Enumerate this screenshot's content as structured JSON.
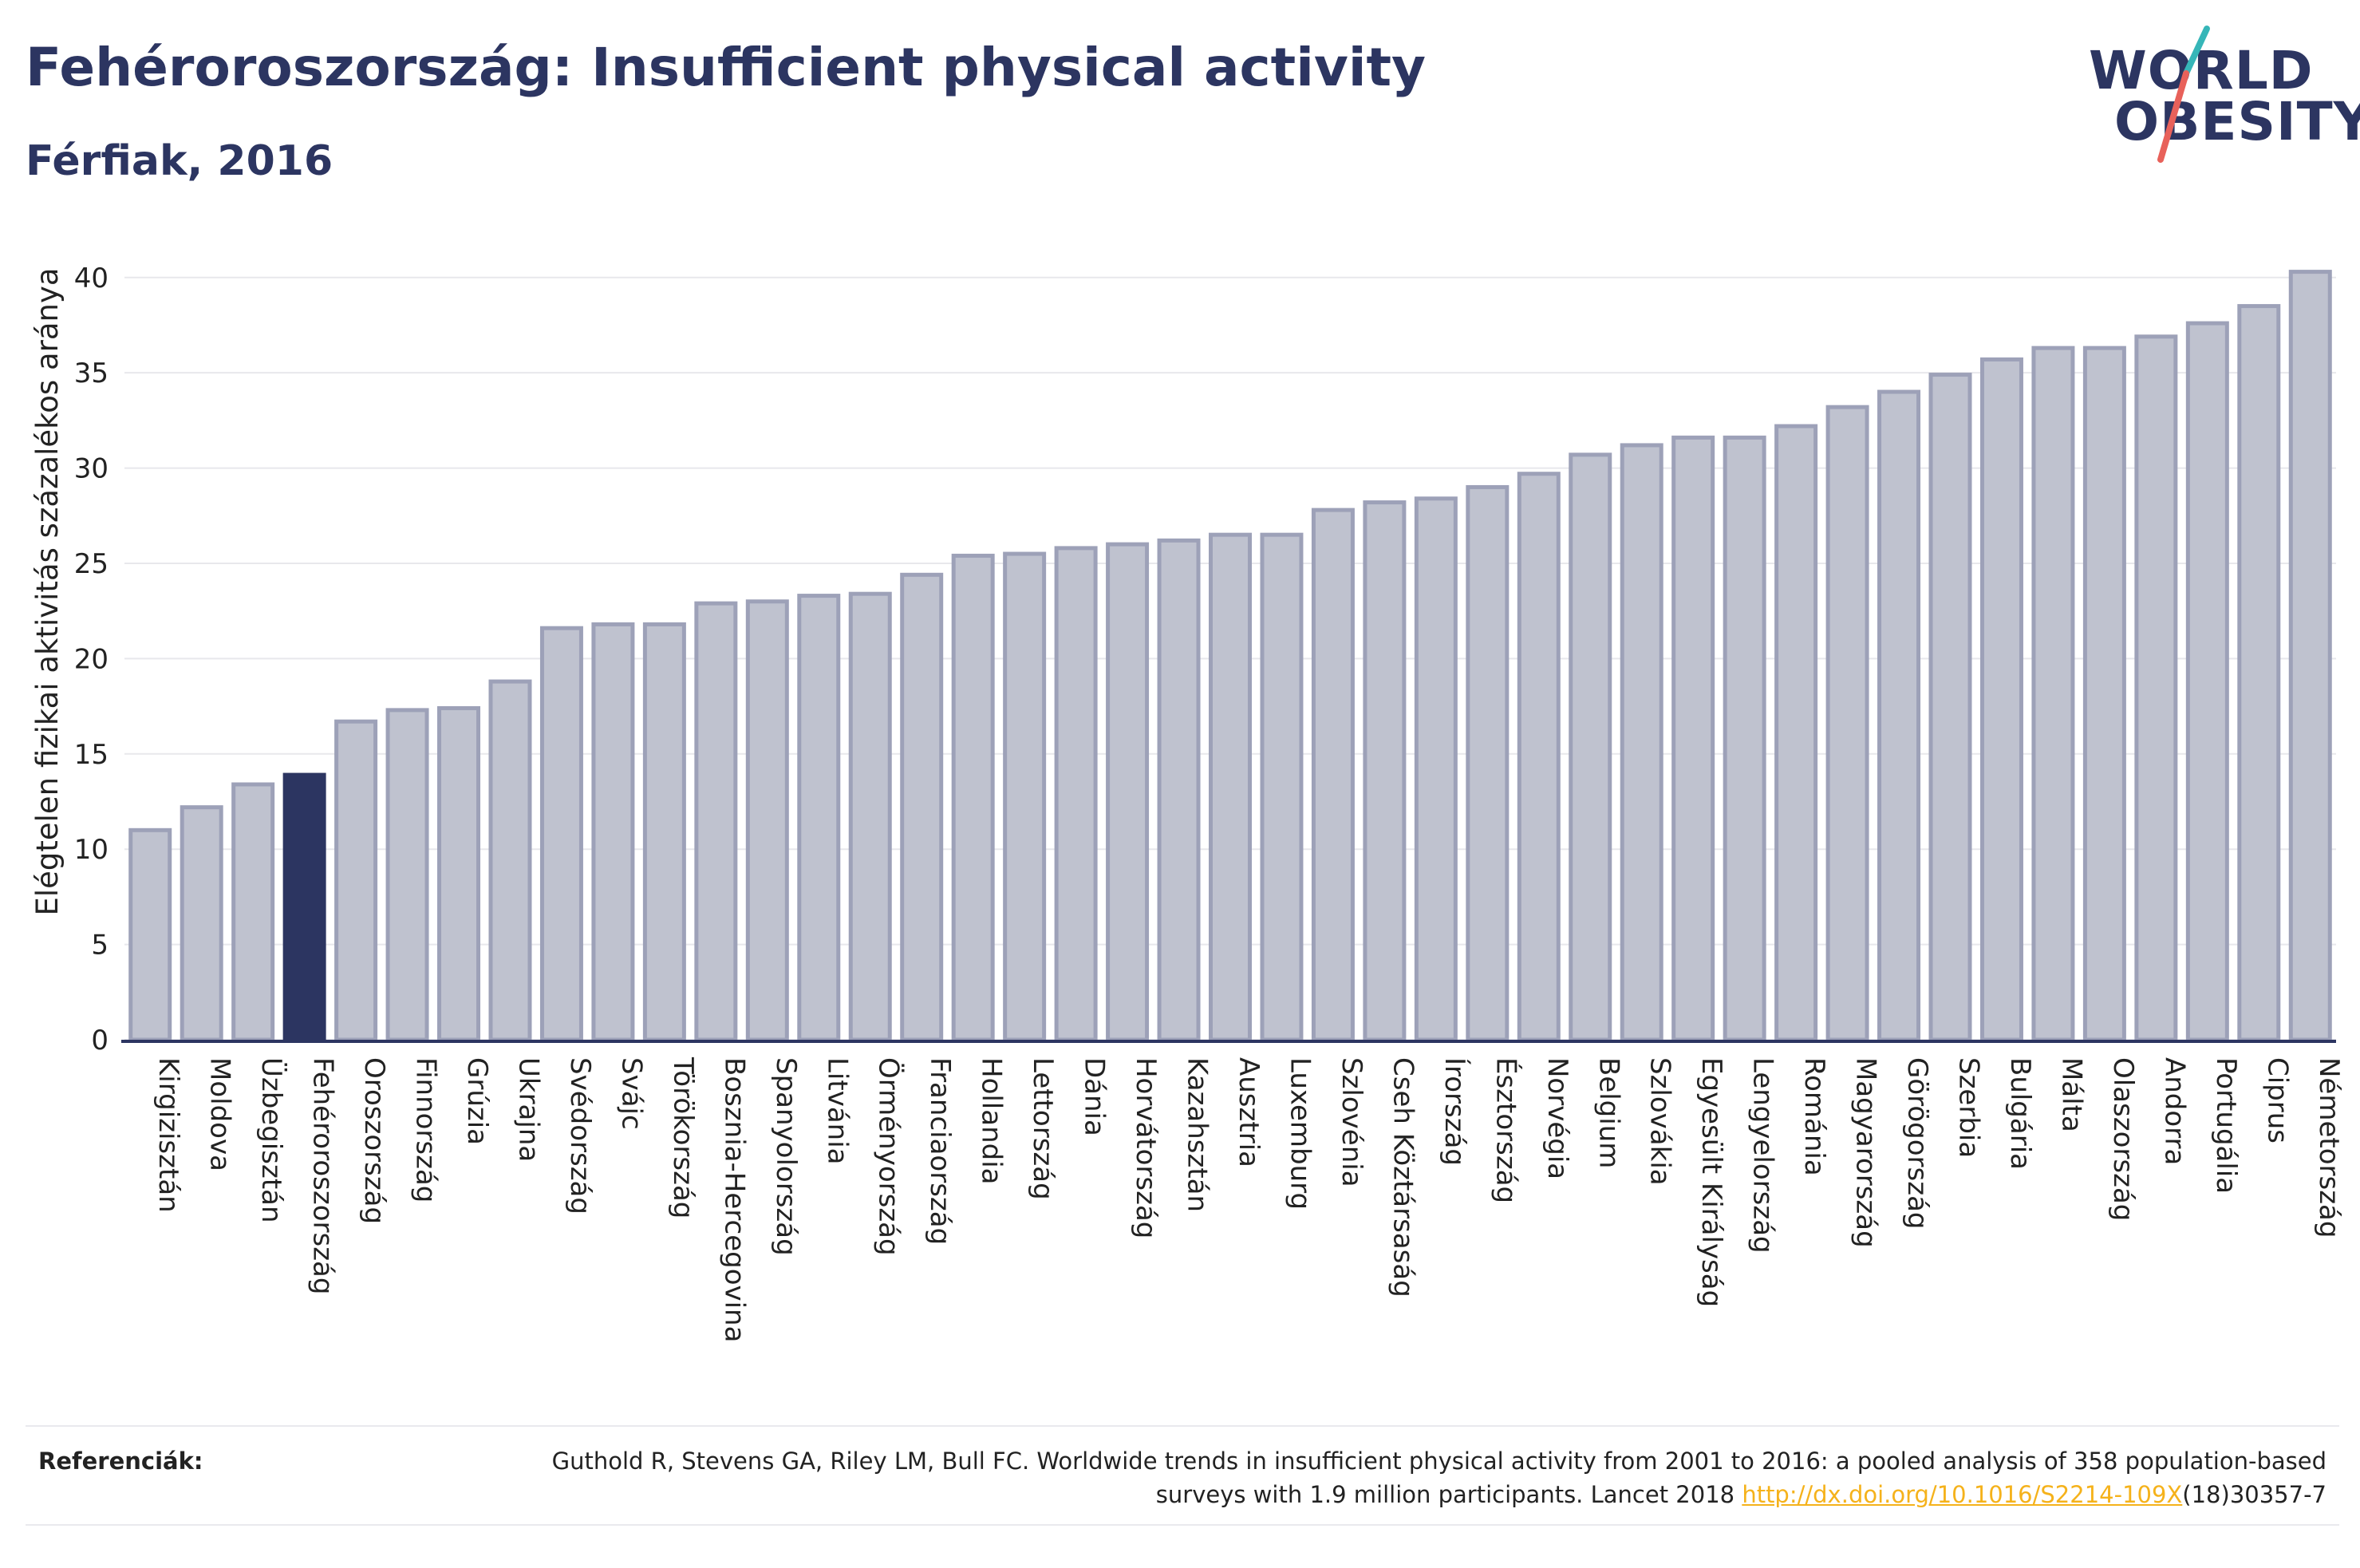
{
  "header": {
    "title": "Fehéroroszország: Insufficient physical activity",
    "subtitle": "Férfiak, 2016"
  },
  "logo": {
    "line1": "WORLD",
    "line2": "OBESITY",
    "slash_colors": [
      "#36b6b8",
      "#e8615a"
    ]
  },
  "colors": {
    "highlight": "#2c3561",
    "bar_fill": "#bfc2cf",
    "bar_stroke": "#9da1b8",
    "grid": "#e8e8ec",
    "axis": "#2c3561",
    "link": "#f5b21b"
  },
  "chart_data": {
    "type": "bar",
    "title": "Fehéroroszország: Insufficient physical activity",
    "subtitle": "Férfiak, 2016",
    "xlabel": "",
    "ylabel": "Elégtelen fizikai aktivitás százalékos aránya",
    "ylim": [
      0,
      42
    ],
    "yticks": [
      0,
      5,
      10,
      15,
      20,
      25,
      30,
      35,
      40
    ],
    "grid": true,
    "legend": "none",
    "highlight_category": "Fehéroroszország",
    "categories": [
      "Kirgizisztán",
      "Moldova",
      "Üzbegisztán",
      "Fehéroroszország",
      "Oroszország",
      "Finnország",
      "Grúzia",
      "Ukrajna",
      "Svédország",
      "Svájc",
      "Törökország",
      "Bosznia-Hercegovina",
      "Spanyolország",
      "Litvánia",
      "Örményország",
      "Franciaország",
      "Hollandia",
      "Lettország",
      "Dánia",
      "Horvátország",
      "Kazahsztán",
      "Ausztria",
      "Luxemburg",
      "Szlovénia",
      "Cseh Köztársaság",
      "Írország",
      "Észtország",
      "Norvégia",
      "Belgium",
      "Szlovákia",
      "Egyesült Királyság",
      "Lengyelország",
      "Románia",
      "Magyarország",
      "Görögország",
      "Szerbia",
      "Bulgária",
      "Málta",
      "Olaszország",
      "Andorra",
      "Portugália",
      "Ciprus",
      "Németország"
    ],
    "values": [
      11.0,
      12.2,
      13.4,
      13.9,
      16.7,
      17.3,
      17.4,
      18.8,
      21.6,
      21.8,
      21.8,
      22.9,
      23.0,
      23.3,
      23.4,
      24.4,
      25.4,
      25.5,
      25.8,
      26.0,
      26.2,
      26.5,
      26.5,
      27.8,
      28.2,
      28.4,
      29.0,
      29.7,
      30.7,
      31.2,
      31.6,
      31.6,
      32.2,
      33.2,
      34.0,
      34.9,
      35.7,
      36.3,
      36.3,
      36.9,
      37.6,
      38.5,
      40.3
    ]
  },
  "references": {
    "label": "Referenciák:",
    "text_before": "Guthold R, Stevens GA, Riley LM, Bull FC. Worldwide trends in insufficient physical activity from 2001 to 2016: a pooled analysis of 358 population-based surveys with 1.9 million participants. Lancet 2018 ",
    "link": "http://dx.doi.org/10.1016/S2214-109X",
    "text_after": "(18)30357-7"
  }
}
